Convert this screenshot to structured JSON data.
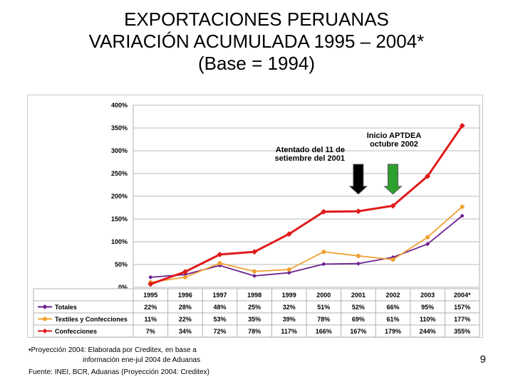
{
  "title_lines": [
    "EXPORTACIONES PERUANAS",
    "VARIACIÓN ACUMULADA 1995 – 2004*",
    "(Base = 1994)"
  ],
  "chart_data": {
    "type": "line",
    "categories": [
      "1995",
      "1996",
      "1997",
      "1998",
      "1999",
      "2000",
      "2001",
      "2002",
      "2003",
      "2004*"
    ],
    "series": [
      {
        "name": "Totales",
        "values": [
          22,
          28,
          48,
          25,
          32,
          51,
          52,
          66,
          95,
          157
        ],
        "labels": [
          "22%",
          "28%",
          "48%",
          "25%",
          "32%",
          "51%",
          "52%",
          "66%",
          "95%",
          "157%"
        ],
        "color": "#6b1f8f"
      },
      {
        "name": "Textiles y Confecciones",
        "values": [
          11,
          22,
          53,
          35,
          39,
          78,
          69,
          61,
          110,
          177
        ],
        "labels": [
          "11%",
          "22%",
          "53%",
          "35%",
          "39%",
          "78%",
          "69%",
          "61%",
          "110%",
          "177%"
        ],
        "color": "#f0a030"
      },
      {
        "name": "Confecciones",
        "values": [
          7,
          34,
          72,
          78,
          117,
          166,
          167,
          179,
          244,
          355
        ],
        "labels": [
          "7%",
          "34%",
          "72%",
          "78%",
          "117%",
          "166%",
          "167%",
          "179%",
          "244%",
          "355%"
        ],
        "color": "#e01a1a"
      }
    ],
    "y_ticks": [
      "0%",
      "50%",
      "100%",
      "150%",
      "200%",
      "250%",
      "300%",
      "350%",
      "400%"
    ],
    "ylim": [
      0,
      400
    ],
    "grid": true,
    "legend": "data table below chart",
    "annotations": [
      {
        "text_lines": [
          "Atentado del 11 de",
          "setiembre del 2001"
        ],
        "category": "2001",
        "arrow_color": "#000000"
      },
      {
        "text_lines": [
          "Inicio APTDEA",
          "octubre 2002"
        ],
        "category": "2002",
        "arrow_color": "#2ea02e"
      }
    ]
  },
  "footnotes": {
    "projection_line1": "•Proyección 2004: Elaborada por Creditex, en base a",
    "projection_line2": "información ene-jul 2004 de Aduanas",
    "source": "Fuente: INEI, BCR, Aduanas (Proyección 2004: Creditex)"
  },
  "page_number": "9"
}
